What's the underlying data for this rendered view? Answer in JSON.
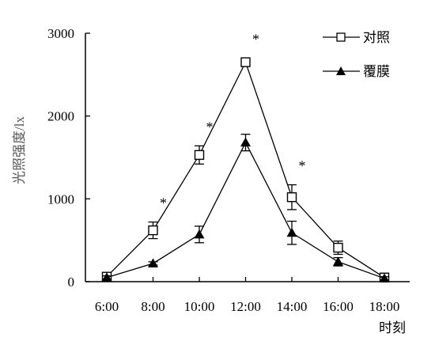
{
  "chart_data": {
    "type": "line",
    "xlabel": "时刻",
    "ylabel": "光照强度/lx",
    "ylim": [
      0,
      3000
    ],
    "yticks": [
      "0",
      "1000",
      "2000",
      "3000"
    ],
    "categories": [
      "6:00",
      "8:00",
      "10:00",
      "12:00",
      "14:00",
      "16:00",
      "18:00"
    ],
    "series": [
      {
        "name": "对照",
        "marker": "open-square",
        "values": [
          60,
          620,
          1530,
          2650,
          1020,
          410,
          50
        ],
        "errors": [
          30,
          100,
          110,
          50,
          150,
          80,
          30
        ]
      },
      {
        "name": "覆膜",
        "marker": "filled-triangle",
        "values": [
          50,
          220,
          570,
          1680,
          590,
          240,
          40
        ],
        "errors": [
          20,
          20,
          100,
          100,
          140,
          50,
          20
        ]
      }
    ],
    "annotations": [
      {
        "x": "8:00",
        "text": "*"
      },
      {
        "x": "10:00",
        "text": "*"
      },
      {
        "x": "12:00",
        "text": "*"
      },
      {
        "x": "14:00",
        "text": "*"
      }
    ],
    "legend": "top-right",
    "grid": false
  }
}
